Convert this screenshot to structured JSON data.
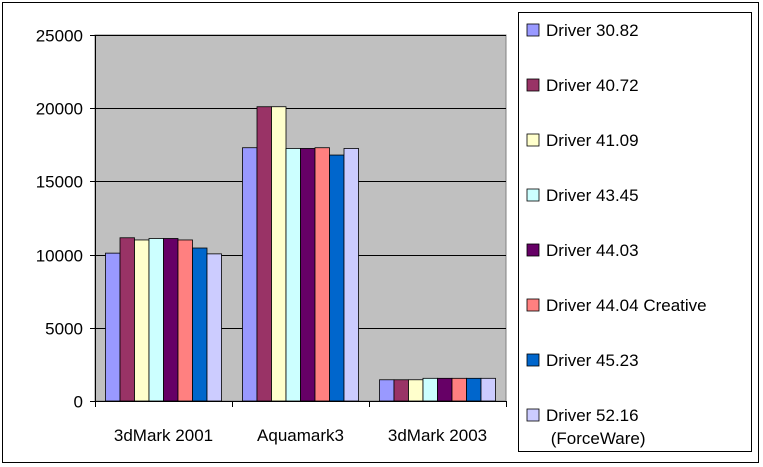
{
  "chart_data": {
    "type": "bar",
    "categories": [
      "3dMark 2001",
      "Aquamark3",
      "3dMark 2003"
    ],
    "ylim": [
      0,
      25000
    ],
    "yticks": [
      0,
      5000,
      10000,
      15000,
      20000,
      25000
    ],
    "grid": true,
    "legend_position": "right",
    "plot_background": "#c0c0c0",
    "series": [
      {
        "name": "Driver 30.82",
        "color": "#9999ff",
        "values": [
          10100,
          17300,
          1450
        ]
      },
      {
        "name": "Driver 40.72",
        "color": "#993366",
        "values": [
          11150,
          20100,
          1450
        ]
      },
      {
        "name": "Driver 41.09",
        "color": "#ffffcc",
        "values": [
          11000,
          20100,
          1450
        ]
      },
      {
        "name": "Driver 43.45",
        "color": "#ccffff",
        "values": [
          11100,
          17250,
          1550
        ]
      },
      {
        "name": "Driver 44.03",
        "color": "#660066",
        "values": [
          11100,
          17250,
          1550
        ]
      },
      {
        "name": "Driver 44.04 Creative",
        "color": "#ff8080",
        "values": [
          11000,
          17300,
          1550
        ]
      },
      {
        "name": "Driver 45.23",
        "color": "#0066cc",
        "values": [
          10450,
          16800,
          1550
        ]
      },
      {
        "name": "Driver 52.16 (ForceWare)",
        "color": "#ccccff",
        "values": [
          10050,
          17250,
          1550
        ]
      }
    ]
  }
}
